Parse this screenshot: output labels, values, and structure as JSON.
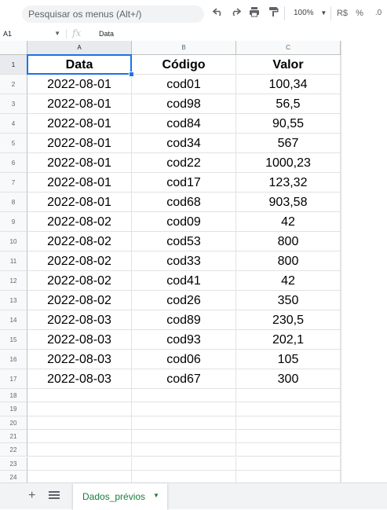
{
  "toolbar": {
    "search_placeholder": "Pesquisar os menus (Alt+/)",
    "undo_icon": "undo-icon",
    "redo_icon": "redo-icon",
    "print_icon": "print-icon",
    "paint_format_icon": "paint-format-icon",
    "zoom": "100%",
    "currency_label": "R$",
    "percent_label": "%",
    "decimal_label": ".0"
  },
  "formula_bar": {
    "cell_ref": "A1",
    "fx_label": "fx",
    "formula": "Data"
  },
  "grid": {
    "columns": [
      "A",
      "B",
      "C"
    ],
    "active_column": "A",
    "active_row": "1",
    "headers": [
      "Data",
      "Código",
      "Valor"
    ],
    "rows": [
      [
        "2022-08-01",
        "cod01",
        "100,34"
      ],
      [
        "2022-08-01",
        "cod98",
        "56,5"
      ],
      [
        "2022-08-01",
        "cod84",
        "90,55"
      ],
      [
        "2022-08-01",
        "cod34",
        "567"
      ],
      [
        "2022-08-01",
        "cod22",
        "1000,23"
      ],
      [
        "2022-08-01",
        "cod17",
        "123,32"
      ],
      [
        "2022-08-01",
        "cod68",
        "903,58"
      ],
      [
        "2022-08-02",
        "cod09",
        "42"
      ],
      [
        "2022-08-02",
        "cod53",
        "800"
      ],
      [
        "2022-08-02",
        "cod33",
        "800"
      ],
      [
        "2022-08-02",
        "cod41",
        "42"
      ],
      [
        "2022-08-02",
        "cod26",
        "350"
      ],
      [
        "2022-08-03",
        "cod89",
        "230,5"
      ],
      [
        "2022-08-03",
        "cod93",
        "202,1"
      ],
      [
        "2022-08-03",
        "cod06",
        "105"
      ],
      [
        "2022-08-03",
        "cod67",
        "300"
      ]
    ],
    "row_numbers": [
      "1",
      "2",
      "3",
      "4",
      "5",
      "6",
      "7",
      "8",
      "9",
      "10",
      "11",
      "12",
      "13",
      "14",
      "15",
      "16",
      "17",
      "18",
      "19",
      "20",
      "21",
      "22",
      "23",
      "24"
    ]
  },
  "sheets": {
    "add_label": "+",
    "tabs": [
      {
        "label": "Dados_prévios",
        "active": true
      }
    ]
  },
  "colors": {
    "selection": "#1a73e8",
    "active_tab_text": "#188038"
  }
}
